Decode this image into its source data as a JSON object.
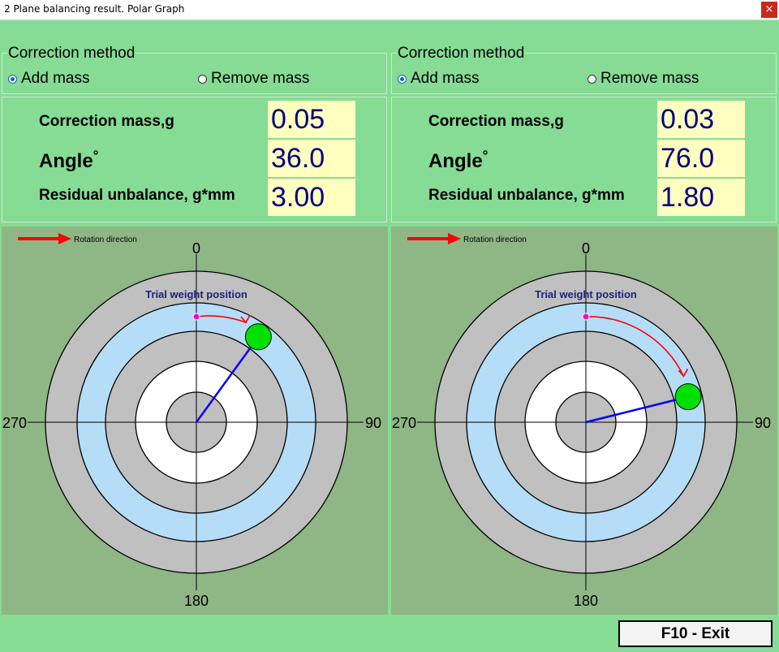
{
  "window": {
    "title": "2 Plane balancing result. Polar Graph",
    "close_glyph": "×"
  },
  "planes": [
    {
      "correction_method": {
        "label": "Correction method",
        "options": [
          "Add mass",
          "Remove mass"
        ],
        "selected": "Add mass"
      },
      "results": {
        "mass_label": "Correction mass,g",
        "mass_value": "0.05",
        "angle_label": "Angle",
        "angle_unit": "°",
        "angle_value": "36.0",
        "residual_label": "Residual unbalance, g*mm",
        "residual_value": "3.00"
      },
      "polar": {
        "rotation_label": "Rotation direction",
        "trial_label": "Trial weight position",
        "axis_labels": {
          "top": "0",
          "right": "90",
          "bottom": "180",
          "left": "270"
        },
        "correction_angle_deg": 36.0
      }
    },
    {
      "correction_method": {
        "label": "Correction method",
        "options": [
          "Add mass",
          "Remove mass"
        ],
        "selected": "Add mass"
      },
      "results": {
        "mass_label": "Correction mass,g",
        "mass_value": "0.03",
        "angle_label": "Angle",
        "angle_unit": "°",
        "angle_value": "76.0",
        "residual_label": "Residual unbalance, g*mm",
        "residual_value": "1.80"
      },
      "polar": {
        "rotation_label": "Rotation direction",
        "trial_label": "Trial weight position",
        "axis_labels": {
          "top": "0",
          "right": "90",
          "bottom": "180",
          "left": "270"
        },
        "correction_angle_deg": 76.0
      }
    }
  ],
  "footer": {
    "exit_label": "F10 - Exit"
  },
  "colors": {
    "background": "#86DC94",
    "value_box": "#FFFFC0",
    "value_text": "#000080",
    "plot_bg": "#8FB685",
    "ring_gray": "#C0C0C0",
    "ring_blue": "#B5DDF8",
    "vector": "#0000FF",
    "marker": "#00E000",
    "arrow": "#FF0000",
    "trial_dot": "#FF00CC"
  }
}
